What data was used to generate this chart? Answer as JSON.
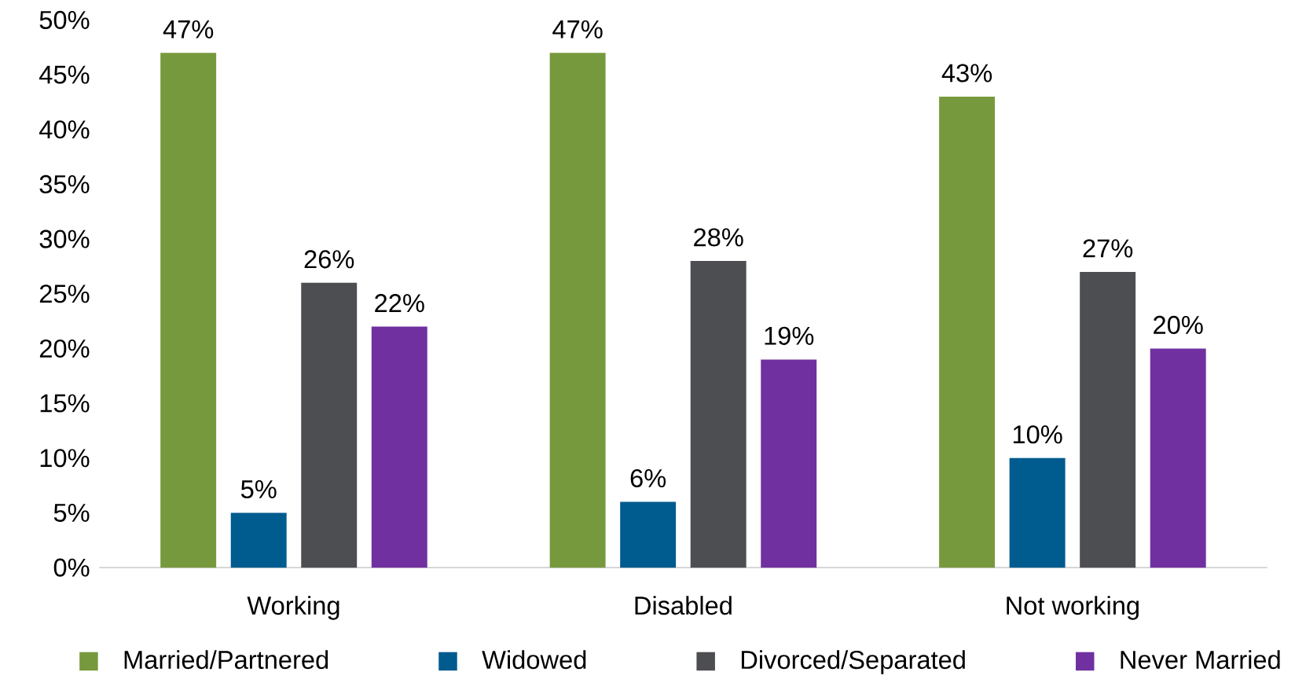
{
  "chart_data": {
    "type": "bar",
    "categories": [
      "Working",
      "Disabled",
      "Not working"
    ],
    "series": [
      {
        "name": "Married/Partnered",
        "color": "#77993d",
        "values": [
          47,
          47,
          43
        ],
        "value_labels": [
          "47%",
          "47%",
          "43%"
        ]
      },
      {
        "name": "Widowed",
        "color": "#005b8f",
        "values": [
          5,
          6,
          10
        ],
        "value_labels": [
          "5%",
          "6%",
          "10%"
        ]
      },
      {
        "name": "Divorced/Separated",
        "color": "#4d4e52",
        "values": [
          26,
          28,
          27
        ],
        "value_labels": [
          "26%",
          "28%",
          "27%"
        ]
      },
      {
        "name": "Never Married",
        "color": "#7030a0",
        "values": [
          22,
          19,
          20
        ],
        "value_labels": [
          "22%",
          "19%",
          "20%"
        ]
      }
    ],
    "ylim": [
      0,
      50
    ],
    "yticks": [
      {
        "value": 0,
        "label": "0%"
      },
      {
        "value": 5,
        "label": "5%"
      },
      {
        "value": 10,
        "label": "10%"
      },
      {
        "value": 15,
        "label": "15%"
      },
      {
        "value": 20,
        "label": "20%"
      },
      {
        "value": 25,
        "label": "25%"
      },
      {
        "value": 30,
        "label": "30%"
      },
      {
        "value": 35,
        "label": "35%"
      },
      {
        "value": 40,
        "label": "40%"
      },
      {
        "value": 45,
        "label": "45%"
      },
      {
        "value": 50,
        "label": "50%"
      }
    ],
    "grid": false,
    "legend": "bottom"
  }
}
